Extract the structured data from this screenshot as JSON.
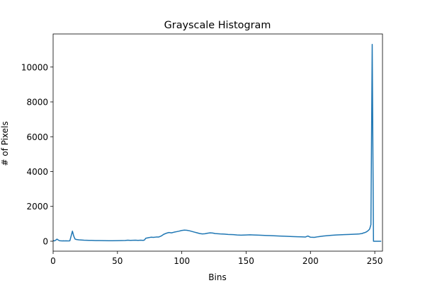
{
  "chart_data": {
    "type": "line",
    "title": "Grayscale Histogram",
    "xlabel": "Bins",
    "ylabel": "# of Pixels",
    "xlim": [
      0,
      256
    ],
    "ylim": [
      -570,
      11900
    ],
    "xticks": [
      0,
      50,
      100,
      150,
      200,
      250
    ],
    "yticks": [
      0,
      2000,
      4000,
      6000,
      8000,
      10000
    ],
    "grid": false,
    "line_color": "#1f77b4",
    "series": [
      {
        "x": [
          0,
          1,
          2,
          3,
          4,
          5,
          6,
          7,
          8,
          9,
          10,
          11,
          12,
          13,
          14,
          15,
          16,
          17,
          18,
          19,
          20,
          22,
          24,
          26,
          28,
          30,
          33,
          36,
          40,
          43,
          46,
          50,
          53,
          56,
          58,
          60,
          62,
          64,
          66,
          68,
          70,
          71,
          72,
          74,
          76,
          78,
          80,
          82,
          84,
          86,
          88,
          90,
          92,
          94,
          96,
          98,
          100,
          102,
          104,
          106,
          108,
          110,
          112,
          114,
          116,
          118,
          120,
          122,
          124,
          126,
          128,
          130,
          133,
          136,
          140,
          143,
          146,
          150,
          153,
          156,
          160,
          163,
          166,
          170,
          173,
          176,
          180,
          183,
          186,
          190,
          193,
          196,
          198,
          200,
          203,
          206,
          210,
          213,
          216,
          220,
          223,
          226,
          230,
          233,
          236,
          238,
          240,
          241,
          242,
          243,
          244,
          245,
          246,
          247,
          248,
          249,
          250,
          252,
          254,
          255
        ],
        "values": [
          40,
          20,
          60,
          120,
          70,
          30,
          25,
          20,
          25,
          20,
          25,
          20,
          20,
          25,
          300,
          580,
          300,
          130,
          100,
          90,
          80,
          70,
          60,
          55,
          50,
          50,
          40,
          40,
          35,
          30,
          30,
          35,
          40,
          45,
          60,
          50,
          55,
          60,
          50,
          60,
          50,
          70,
          170,
          200,
          230,
          220,
          240,
          240,
          300,
          400,
          460,
          500,
          480,
          520,
          550,
          580,
          620,
          640,
          630,
          600,
          560,
          520,
          480,
          440,
          420,
          430,
          460,
          480,
          470,
          440,
          430,
          420,
          410,
          390,
          380,
          360,
          350,
          360,
          370,
          360,
          350,
          340,
          330,
          320,
          310,
          300,
          290,
          280,
          270,
          260,
          250,
          240,
          300,
          230,
          220,
          260,
          300,
          320,
          340,
          360,
          370,
          380,
          390,
          400,
          410,
          420,
          440,
          470,
          490,
          520,
          560,
          620,
          700,
          950,
          11300,
          0,
          0,
          0,
          0,
          0
        ]
      }
    ]
  }
}
